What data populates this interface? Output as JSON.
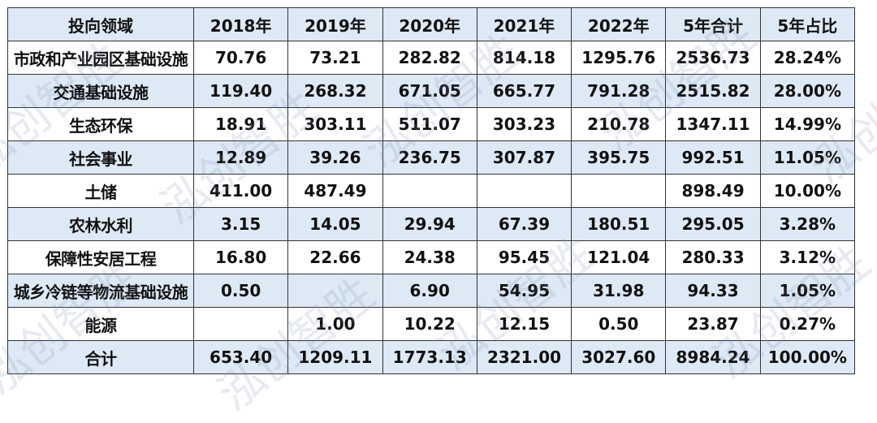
{
  "watermark": "泓创智胜",
  "colors": {
    "header_bg": "#dde9f5",
    "stripe_bg": "#dde9f5",
    "border": "#333333"
  },
  "table": {
    "headers": [
      "投向领域",
      "2018年",
      "2019年",
      "2020年",
      "2021年",
      "2022年",
      "5年合计",
      "5年占比"
    ],
    "rows": [
      [
        "市政和产业园区基础设施",
        "70.76",
        "73.21",
        "282.82",
        "814.18",
        "1295.76",
        "2536.73",
        "28.24%"
      ],
      [
        "交通基础设施",
        "119.40",
        "268.32",
        "671.05",
        "665.77",
        "791.28",
        "2515.82",
        "28.00%"
      ],
      [
        "生态环保",
        "18.91",
        "303.11",
        "511.07",
        "303.23",
        "210.78",
        "1347.11",
        "14.99%"
      ],
      [
        "社会事业",
        "12.89",
        "39.26",
        "236.75",
        "307.87",
        "395.75",
        "992.51",
        "11.05%"
      ],
      [
        "土储",
        "411.00",
        "487.49",
        "",
        "",
        "",
        "898.49",
        "10.00%"
      ],
      [
        "农林水利",
        "3.15",
        "14.05",
        "29.94",
        "67.39",
        "180.51",
        "295.05",
        "3.28%"
      ],
      [
        "保障性安居工程",
        "16.80",
        "22.66",
        "24.38",
        "95.45",
        "121.04",
        "280.33",
        "3.12%"
      ],
      [
        "城乡冷链等物流基础设施",
        "0.50",
        "",
        "6.90",
        "54.95",
        "31.98",
        "94.33",
        "1.05%"
      ],
      [
        "能源",
        "",
        "1.00",
        "10.22",
        "12.15",
        "0.50",
        "23.87",
        "0.27%"
      ],
      [
        "合计",
        "653.40",
        "1209.11",
        "1773.13",
        "2321.00",
        "3027.60",
        "8984.24",
        "100.00%"
      ]
    ]
  }
}
